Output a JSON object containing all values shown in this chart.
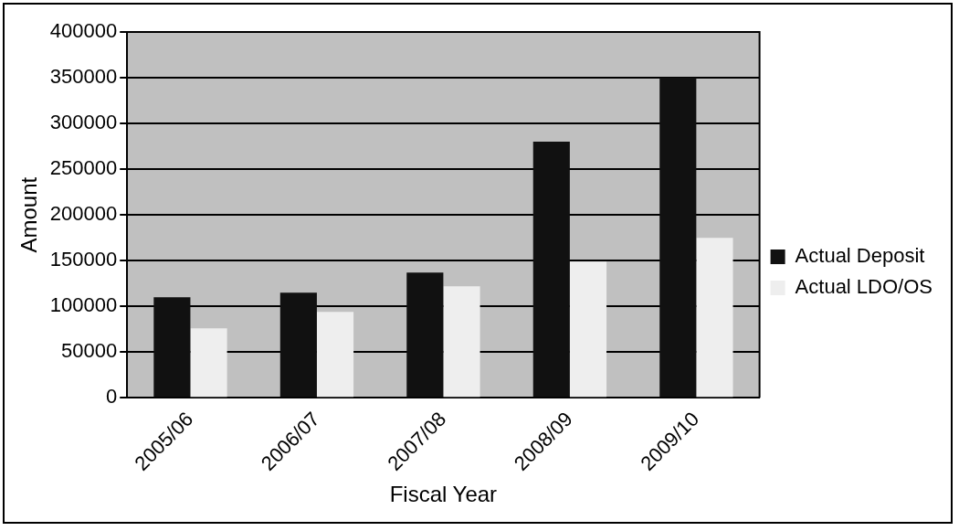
{
  "chart_data": {
    "type": "bar",
    "xlabel": "Fiscal Year",
    "ylabel": "Amount",
    "categories": [
      "2005/06",
      "2006/07",
      "2007/08",
      "2008/09",
      "2009/10"
    ],
    "series": [
      {
        "name": "Actual Deposit",
        "color": "#111111",
        "values": [
          110000,
          115000,
          137000,
          280000,
          350000
        ]
      },
      {
        "name": "Actual LDO/OS",
        "color": "#eeeeee",
        "values": [
          76000,
          94000,
          122000,
          149000,
          175000
        ]
      }
    ],
    "ylim": [
      0,
      400000
    ],
    "yticks": [
      0,
      50000,
      100000,
      150000,
      200000,
      250000,
      300000,
      350000,
      400000
    ],
    "grid": "y",
    "legend": "right"
  }
}
